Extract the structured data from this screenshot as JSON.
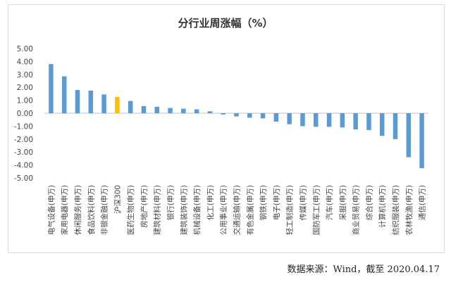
{
  "chart_data": {
    "type": "bar",
    "title": "分行业周涨幅（%）",
    "xlabel": "",
    "ylabel": "",
    "ylim": [
      -5,
      5
    ],
    "yticks": [
      "5.00",
      "4.00",
      "3.00",
      "2.00",
      "1.00",
      "0.00",
      "-1.00",
      "-2.00",
      "-3.00",
      "-4.00",
      "-5.00"
    ],
    "grid": false,
    "colors": {
      "default": "#5b9bd5",
      "highlight": "#ffc000"
    },
    "highlight_category": "沪深300",
    "categories": [
      "电气设备(申万)",
      "家用电器(申万)",
      "休闲服务(申万)",
      "食品饮料(申万)",
      "非银金融(申万)",
      "沪深300",
      "医药生物(申万)",
      "房地产(申万)",
      "建筑材料(申万)",
      "银行(申万)",
      "建筑装饰(申万)",
      "机械设备(申万)",
      "化工(申万)",
      "公用事业(申万)",
      "交通运输(申万)",
      "有色金属(申万)",
      "钢铁(申万)",
      "电子(申万)",
      "轻工制造(申万)",
      "传媒(申万)",
      "国防军工(申万)",
      "汽车(申万)",
      "采掘(申万)",
      "商业贸易(申万)",
      "综合(申万)",
      "计算机(申万)",
      "纺织服装(申万)",
      "农林牧渔(申万)",
      "通信(申万)"
    ],
    "values": [
      3.8,
      2.85,
      1.8,
      1.75,
      1.45,
      1.25,
      0.95,
      0.55,
      0.5,
      0.4,
      0.35,
      0.3,
      0.15,
      -0.1,
      -0.25,
      -0.35,
      -0.4,
      -0.65,
      -0.85,
      -1.0,
      -1.05,
      -1.05,
      -1.1,
      -1.25,
      -1.3,
      -1.75,
      -2.0,
      -3.4,
      -4.25
    ]
  },
  "source": "数据来源：Wind，截至 2020.04.17"
}
